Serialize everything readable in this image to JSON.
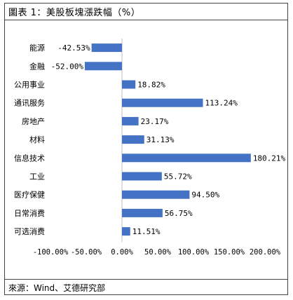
{
  "page": {
    "title": "圖表 1：美股板塊漲跌幅（%）",
    "source": "來源：Wind、艾德研究部"
  },
  "colors": {
    "bar": "#4472C4",
    "axis": "#bfbfbf"
  },
  "chart_data": {
    "type": "bar",
    "orientation": "horizontal",
    "title": "圖表 1：美股板塊漲跌幅（%）",
    "categories": [
      "能源",
      "金融",
      "公用事业",
      "通讯服务",
      "房地产",
      "材料",
      "信息技术",
      "工业",
      "医疗保健",
      "日常消费",
      "可选消费"
    ],
    "values": [
      -42.53,
      -52.0,
      18.82,
      113.24,
      23.17,
      31.13,
      180.21,
      55.72,
      94.5,
      56.75,
      11.51
    ],
    "data_labels": [
      "-42.53%",
      "-52.00%",
      "18.82%",
      "113.24%",
      "23.17%",
      "31.13%",
      "180.21%",
      "55.72%",
      "94.50%",
      "56.75%",
      "11.51%"
    ],
    "xlim": [
      -100,
      200
    ],
    "x_ticks": [
      -100,
      -50,
      0,
      50,
      100,
      150,
      200
    ],
    "x_tick_labels": [
      "-100.00%",
      "-50.00%",
      "0.00%",
      "50.00%",
      "100.00%",
      "150.00%",
      "200.00%"
    ],
    "xlabel": "",
    "ylabel": "",
    "grid": false,
    "legend": "none"
  }
}
